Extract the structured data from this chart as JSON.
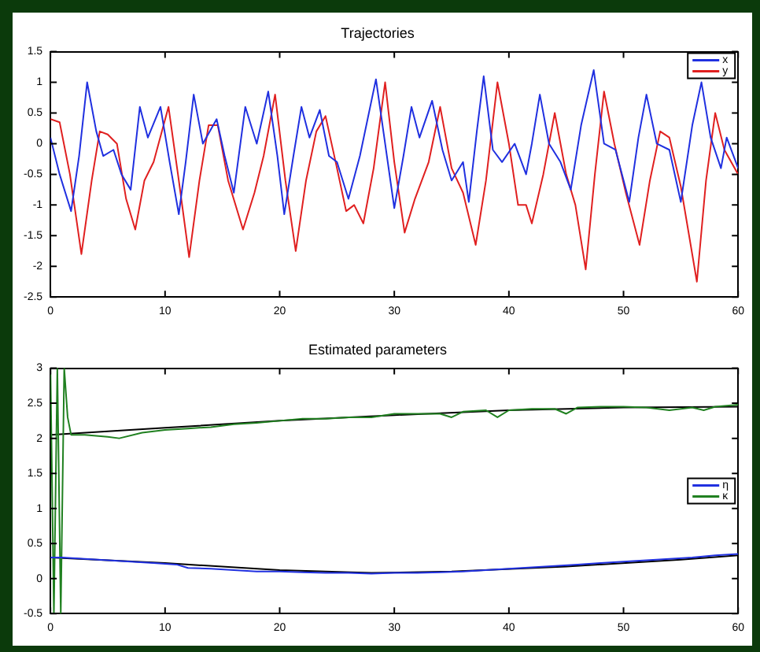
{
  "chart_data": [
    {
      "type": "line",
      "title": "Trajectories",
      "xlim": [
        0,
        60
      ],
      "xticks": [
        0,
        10,
        20,
        30,
        40,
        50,
        60
      ],
      "ylim": [
        -2.5,
        1.5
      ],
      "yticks": [
        -2.5,
        -2,
        -1.5,
        -1,
        -0.5,
        0,
        0.5,
        1,
        1.5
      ],
      "grid": false,
      "legend": "top right",
      "marker": "none",
      "series": [
        {
          "name": "x",
          "color": "#2030e0",
          "x": [
            0,
            0.8,
            1.8,
            2.5,
            3.2,
            4,
            4.6,
            5.5,
            6.2,
            7,
            7.8,
            8.5,
            9.6,
            10.4,
            11.2,
            11.8,
            12.5,
            13.3,
            14.5,
            15.2,
            16,
            17,
            18,
            19,
            19.8,
            20.4,
            21.2,
            21.9,
            22.6,
            23.5,
            24.3,
            25,
            26,
            27,
            28.4,
            29.2,
            30,
            30.8,
            31.5,
            32.2,
            33.3,
            34.2,
            35,
            36,
            36.5,
            37.2,
            37.8,
            38.6,
            39.4,
            40.5,
            41.5,
            42,
            42.7,
            43.5,
            44.5,
            45.4,
            46.3,
            47.4,
            48.3,
            49.3,
            50.5,
            51.3,
            52,
            52.9,
            54,
            55,
            56,
            56.8,
            57.6,
            58.5,
            59,
            60
          ],
          "values": [
            0.1,
            -0.5,
            -1.1,
            -0.2,
            1.0,
            0.2,
            -0.2,
            -0.1,
            -0.5,
            -0.75,
            0.6,
            0.1,
            0.6,
            -0.3,
            -1.15,
            -0.3,
            0.8,
            0.0,
            0.4,
            -0.2,
            -0.8,
            0.6,
            0.0,
            0.85,
            -0.2,
            -1.15,
            -0.2,
            0.6,
            0.1,
            0.55,
            -0.2,
            -0.3,
            -0.9,
            -0.2,
            1.05,
            0.0,
            -1.05,
            -0.2,
            0.6,
            0.1,
            0.7,
            -0.1,
            -0.6,
            -0.3,
            -0.95,
            0.2,
            1.1,
            -0.1,
            -0.3,
            0.0,
            -0.5,
            0.0,
            0.8,
            0.0,
            -0.3,
            -0.75,
            0.3,
            1.2,
            0.0,
            -0.1,
            -0.95,
            0.1,
            0.8,
            0.0,
            -0.1,
            -0.95,
            0.3,
            1.0,
            0.1,
            -0.4,
            0.1,
            -0.4
          ]
        },
        {
          "name": "y",
          "color": "#e02020",
          "x": [
            0,
            0.8,
            1.7,
            2.7,
            3.6,
            4.3,
            5,
            5.8,
            6.6,
            7.4,
            8.2,
            9,
            10.3,
            11.2,
            12.1,
            13,
            13.8,
            14.6,
            15.5,
            16.8,
            17.8,
            18.6,
            19.6,
            20.5,
            21.4,
            22.3,
            23.2,
            24,
            25,
            25.8,
            26.5,
            27.3,
            28.2,
            29.2,
            30,
            30.9,
            31.8,
            33,
            34,
            35,
            36,
            37.1,
            38,
            39,
            40,
            40.8,
            41.5,
            42,
            43,
            44,
            45,
            45.8,
            46.7,
            47.5,
            48.3,
            49.2,
            50.2,
            51.4,
            52.3,
            53.2,
            54,
            55,
            56.4,
            57.2,
            58,
            58.8,
            60
          ],
          "values": [
            0.4,
            0.35,
            -0.5,
            -1.8,
            -0.6,
            0.2,
            0.15,
            0.0,
            -0.9,
            -1.4,
            -0.6,
            -0.3,
            0.6,
            -0.6,
            -1.85,
            -0.6,
            0.3,
            0.3,
            -0.6,
            -1.4,
            -0.8,
            -0.2,
            0.8,
            -0.6,
            -1.75,
            -0.6,
            0.2,
            0.45,
            -0.4,
            -1.1,
            -1.0,
            -1.3,
            -0.4,
            1.0,
            -0.3,
            -1.45,
            -0.9,
            -0.3,
            0.6,
            -0.4,
            -0.8,
            -1.65,
            -0.6,
            1.0,
            0.0,
            -1.0,
            -1.0,
            -1.3,
            -0.5,
            0.5,
            -0.5,
            -1.0,
            -2.05,
            -0.5,
            0.85,
            0.0,
            -0.8,
            -1.65,
            -0.6,
            0.2,
            0.1,
            -0.7,
            -2.25,
            -0.6,
            0.5,
            -0.1,
            -0.5
          ]
        }
      ]
    },
    {
      "type": "line",
      "title": "Estimated parameters",
      "xlim": [
        0,
        60
      ],
      "xticks": [
        0,
        10,
        20,
        30,
        40,
        50,
        60
      ],
      "ylim": [
        -0.5,
        3
      ],
      "yticks": [
        -0.5,
        0,
        0.5,
        1,
        1.5,
        2,
        2.5,
        3
      ],
      "grid": false,
      "legend": "right",
      "marker": "none",
      "series": [
        {
          "name": "η",
          "color": "#2030e0",
          "x": [
            0,
            1,
            3,
            5,
            7,
            9,
            11,
            12,
            14,
            16,
            18,
            20,
            22,
            24,
            26,
            28,
            30,
            32,
            34,
            36,
            38,
            40,
            42,
            44,
            46,
            48,
            50,
            52,
            54,
            56,
            58,
            60
          ],
          "values": [
            0.3,
            0.3,
            0.28,
            0.26,
            0.24,
            0.22,
            0.2,
            0.15,
            0.14,
            0.12,
            0.1,
            0.1,
            0.09,
            0.08,
            0.08,
            0.07,
            0.08,
            0.08,
            0.09,
            0.1,
            0.12,
            0.14,
            0.16,
            0.18,
            0.2,
            0.22,
            0.24,
            0.26,
            0.28,
            0.3,
            0.33,
            0.35
          ]
        },
        {
          "name": "κ",
          "color": "#208020",
          "x": [
            0,
            0.3,
            0.6,
            0.9,
            1.2,
            1.5,
            1.8,
            3,
            5,
            6,
            8,
            10,
            12,
            14,
            16,
            18,
            20,
            22,
            24,
            26,
            28,
            30,
            32,
            34,
            35,
            36,
            38,
            39,
            40,
            42,
            44,
            45,
            46,
            48,
            50,
            52,
            54,
            56,
            57,
            58,
            60
          ],
          "values": [
            3,
            -0.5,
            3,
            -0.5,
            3,
            2.3,
            2.05,
            2.05,
            2.02,
            2.0,
            2.08,
            2.12,
            2.14,
            2.16,
            2.2,
            2.22,
            2.25,
            2.28,
            2.28,
            2.3,
            2.3,
            2.35,
            2.35,
            2.35,
            2.3,
            2.38,
            2.4,
            2.3,
            2.4,
            2.42,
            2.42,
            2.35,
            2.44,
            2.45,
            2.45,
            2.44,
            2.4,
            2.44,
            2.4,
            2.45,
            2.48
          ]
        },
        {
          "color": "#000000",
          "x": [
            0,
            10,
            20,
            30,
            40,
            50,
            60
          ],
          "values": [
            2.05,
            2.15,
            2.25,
            2.33,
            2.4,
            2.44,
            2.45
          ]
        },
        {
          "color": "#000000",
          "x": [
            0,
            10,
            20,
            28,
            35,
            45,
            55,
            60
          ],
          "values": [
            0.3,
            0.22,
            0.12,
            0.08,
            0.1,
            0.17,
            0.27,
            0.33
          ]
        }
      ]
    }
  ]
}
